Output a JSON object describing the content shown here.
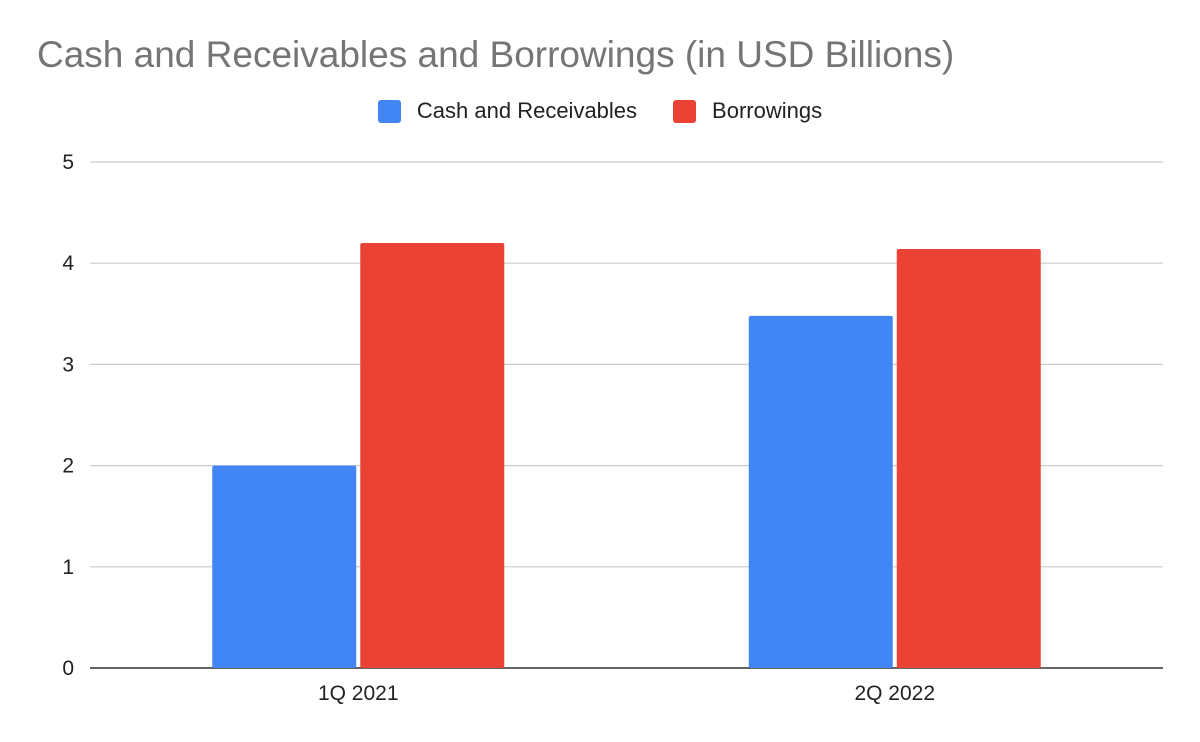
{
  "chart_data": {
    "type": "bar",
    "title": "Cash and Receivables and Borrowings (in USD Billions)",
    "categories": [
      "1Q 2021",
      "2Q 2022"
    ],
    "series": [
      {
        "name": "Cash and Receivables",
        "values": [
          2.0,
          3.48
        ],
        "color": "#4285F4"
      },
      {
        "name": "Borrowings",
        "values": [
          4.2,
          4.14
        ],
        "color": "#EA4335"
      }
    ],
    "xlabel": "",
    "ylabel": "",
    "ylim": [
      0,
      5
    ],
    "yticks": [
      "0",
      "1",
      "2",
      "3",
      "4",
      "5"
    ],
    "grid": true,
    "legend_position": "top"
  }
}
